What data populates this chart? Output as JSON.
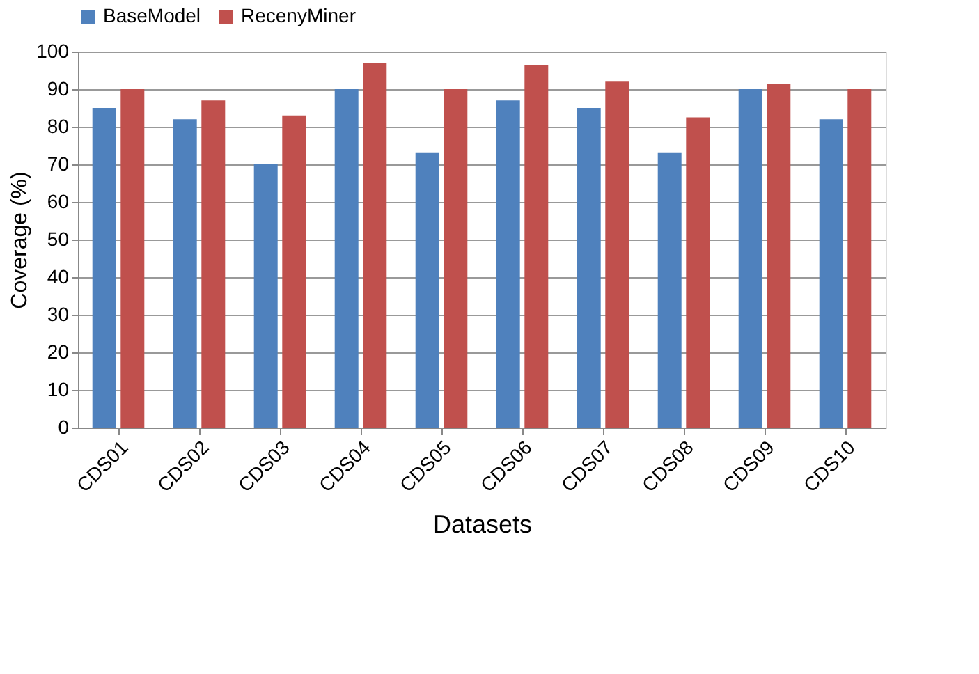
{
  "chart_data": {
    "type": "bar",
    "xlabel": "Datasets",
    "ylabel": "Coverage (%)",
    "categories": [
      "CDS01",
      "CDS02",
      "CDS03",
      "CDS04",
      "CDS05",
      "CDS06",
      "CDS07",
      "CDS08",
      "CDS09",
      "CDS10"
    ],
    "series": [
      {
        "name": "BaseModel",
        "color": "#4f81bd",
        "values": [
          85,
          82,
          70,
          90,
          73,
          87,
          85,
          73,
          90,
          82
        ]
      },
      {
        "name": "RecenyMiner",
        "color": "#c0504d",
        "values": [
          90,
          87,
          83,
          97,
          90,
          96.5,
          92,
          82.5,
          91.5,
          90
        ]
      }
    ],
    "ylim": [
      0,
      100
    ],
    "yticks": [
      0,
      10,
      20,
      30,
      40,
      50,
      60,
      70,
      80,
      90,
      100
    ],
    "grid": "y",
    "legend": "top"
  }
}
